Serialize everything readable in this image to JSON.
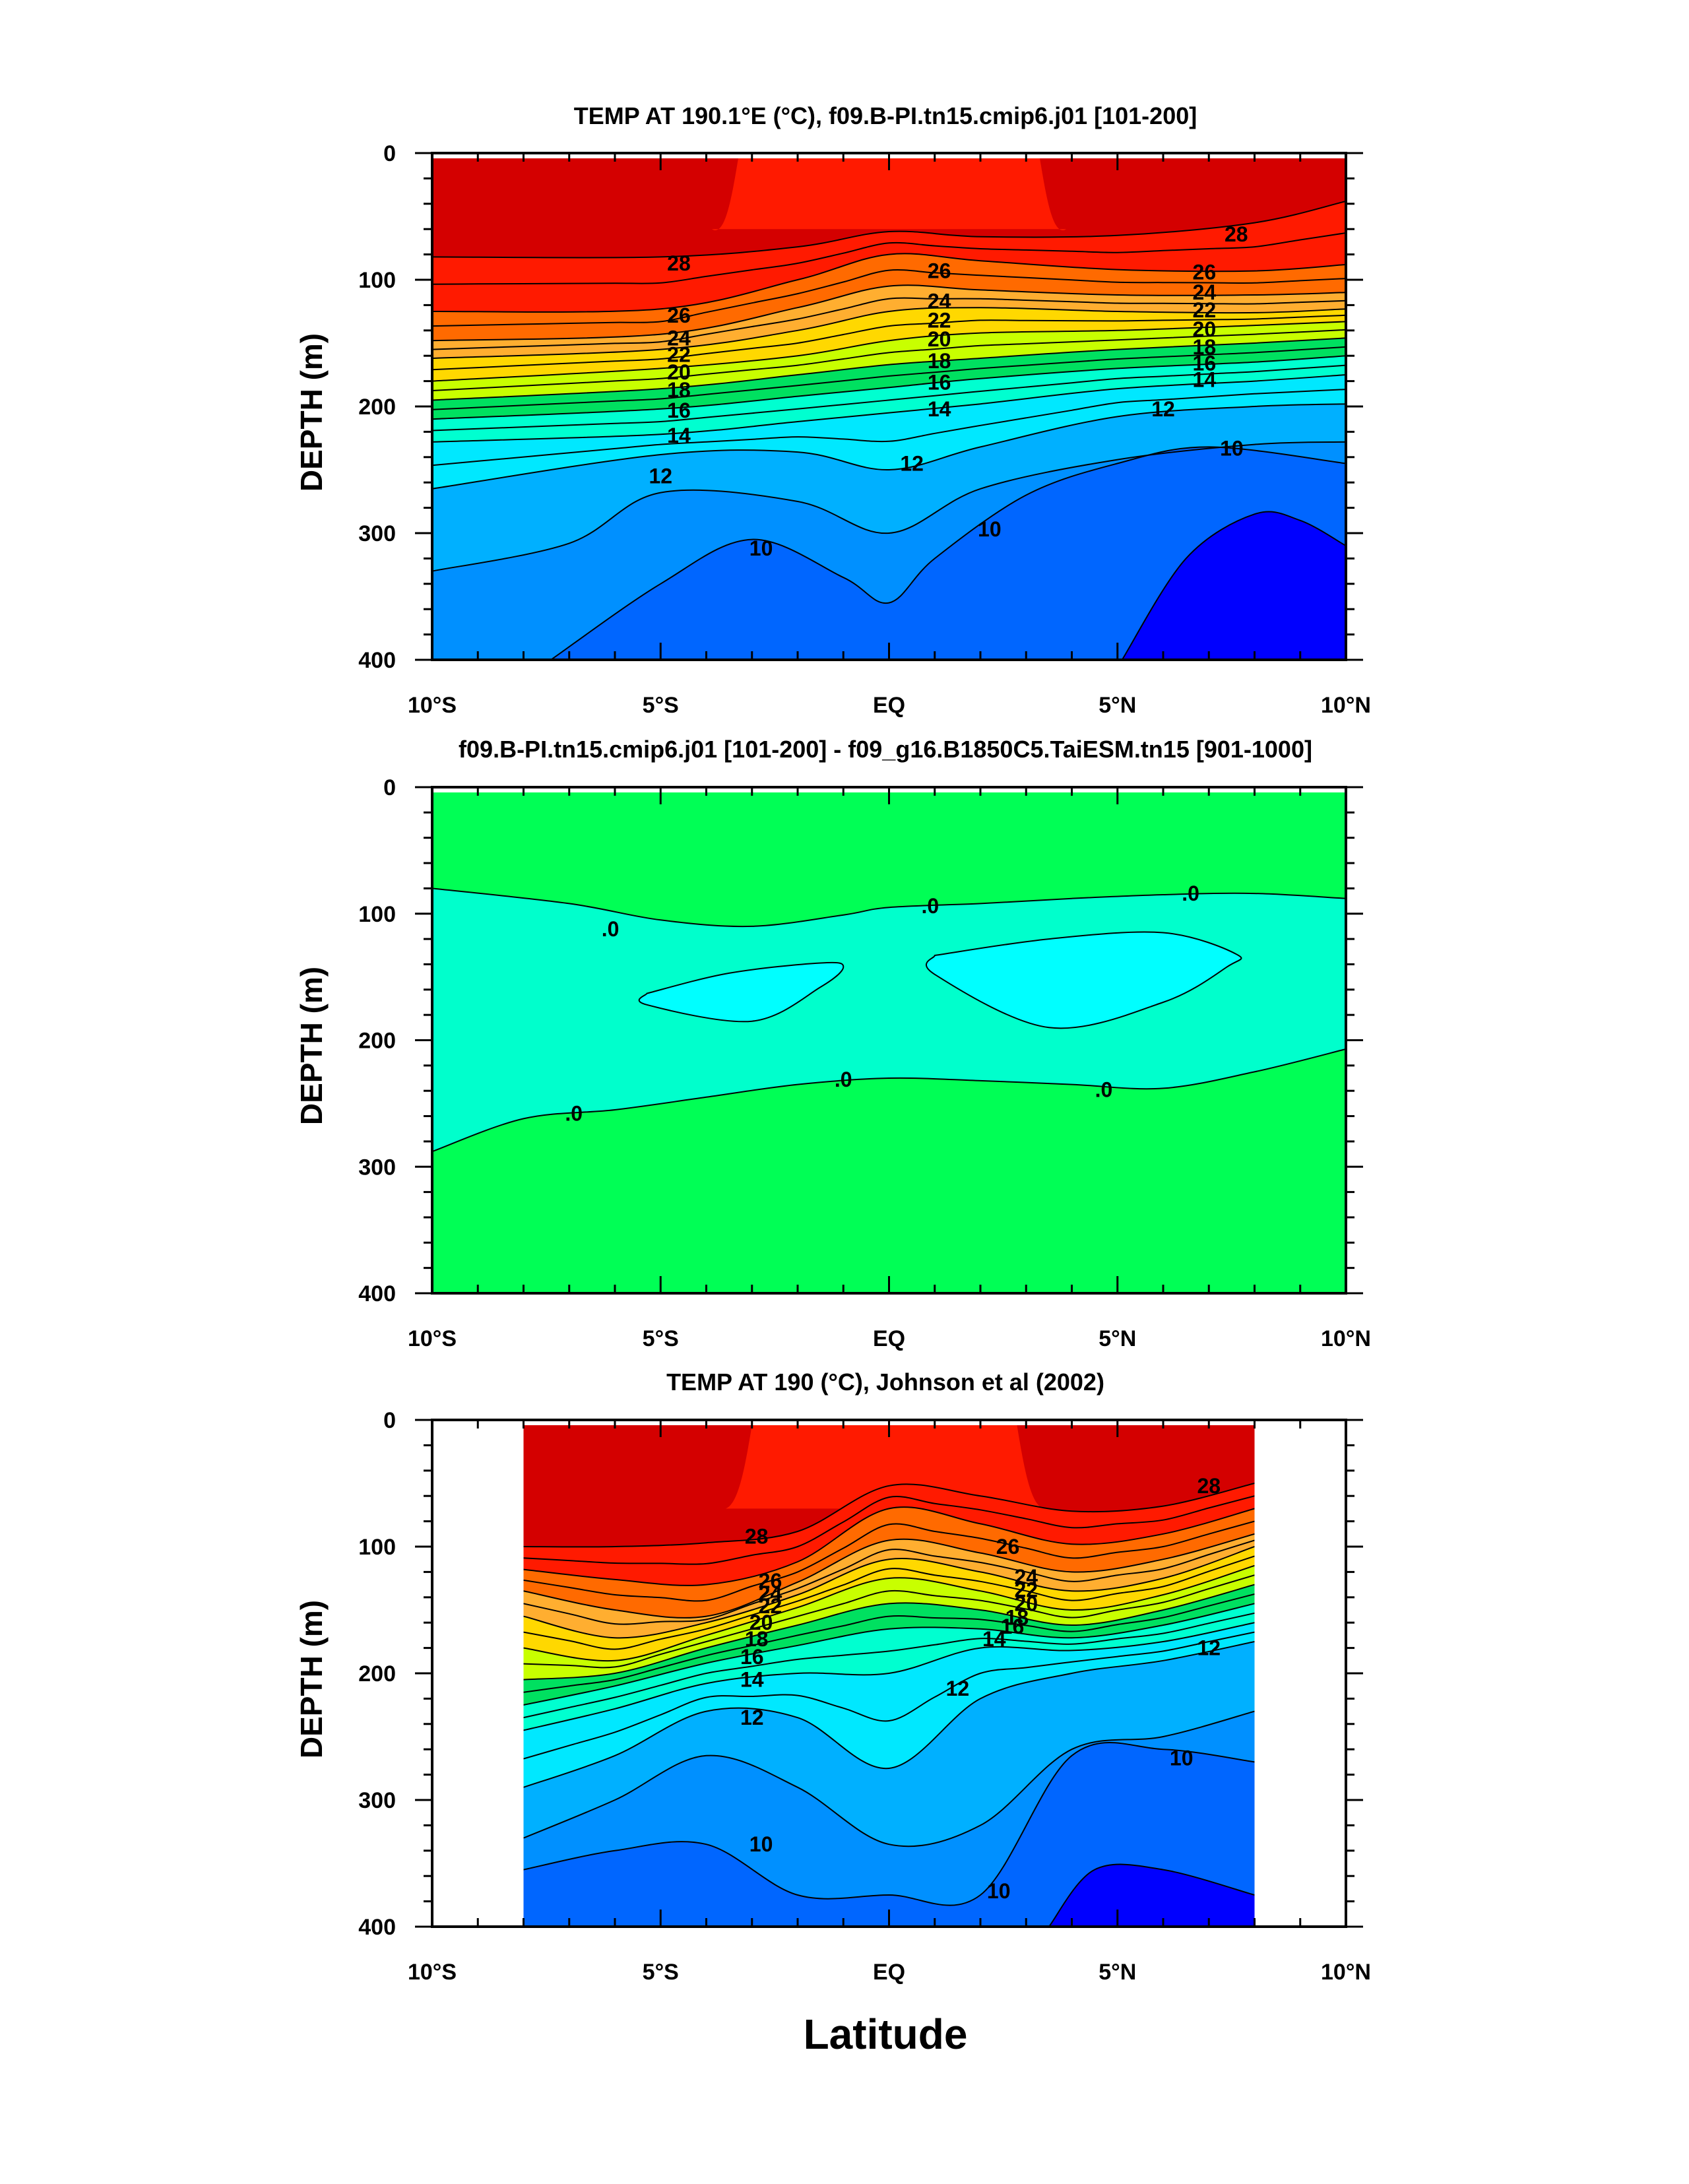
{
  "chart_data": [
    {
      "type": "heatmap",
      "subtype": "filled-contour depth-latitude section",
      "title": "TEMP AT 190.1°E (°C), f09.B-PI.tn15.cmip6.j01 [101-200]",
      "xlabel": "",
      "ylabel": "DEPTH (m)",
      "xlim": [
        -10,
        10
      ],
      "ylim": [
        400,
        0
      ],
      "x_tick_values": [
        -10,
        -5,
        0,
        5,
        10
      ],
      "x_tick_labels": [
        "10°S",
        "5°S",
        "EQ",
        "5°N",
        "10°N"
      ],
      "y_ticks": [
        0,
        100,
        200,
        300,
        400
      ],
      "data_lat_range": [
        -10,
        10
      ],
      "contour_interval": 1,
      "colors": {
        "30": "#d40000",
        "28": "#ff1a00",
        "26": "#ff6a00",
        "25": "#ff8c00",
        "24": "#ffae30",
        "22": "#ffd800",
        "21": "#ffff20",
        "20": "#c8ff00",
        "19": "#50ee00",
        "18": "#00e060",
        "16": "#00ffd0",
        "15": "#30ffff",
        "14": "#00e8ff",
        "13": "#00ccff",
        "12": "#00b0ff",
        "11": "#0090ff",
        "10": "#0066ff",
        "9": "#0000ff"
      },
      "isotherms": [
        {
          "level": 28,
          "lat": [
            -10,
            -5,
            -2,
            0,
            2,
            5,
            8,
            10
          ],
          "depth": [
            82,
            82,
            74,
            62,
            66,
            65,
            55,
            38
          ]
        },
        {
          "level": 26,
          "lat": [
            -10,
            -5,
            -2,
            0,
            2,
            5,
            8,
            10
          ],
          "depth": [
            125,
            123,
            100,
            80,
            85,
            92,
            93,
            88
          ]
        },
        {
          "level": 24,
          "lat": [
            -10,
            -5,
            -2,
            0,
            2,
            5,
            8,
            10
          ],
          "depth": [
            148,
            143,
            122,
            105,
            108,
            112,
            112,
            110
          ]
        },
        {
          "level": 22,
          "lat": [
            -10,
            -5,
            -2,
            0,
            2,
            5,
            8,
            10
          ],
          "depth": [
            162,
            155,
            140,
            125,
            122,
            125,
            126,
            123
          ]
        },
        {
          "level": 20,
          "lat": [
            -10,
            -5,
            -2,
            0,
            2,
            5,
            8,
            10
          ],
          "depth": [
            180,
            170,
            160,
            148,
            142,
            140,
            136,
            133
          ]
        },
        {
          "level": 18,
          "lat": [
            -10,
            -5,
            -2,
            0,
            2,
            5,
            8,
            10
          ],
          "depth": [
            195,
            186,
            175,
            167,
            162,
            155,
            150,
            146
          ]
        },
        {
          "level": 16,
          "lat": [
            -10,
            -5,
            -2,
            0,
            2,
            5,
            8,
            10
          ],
          "depth": [
            210,
            202,
            192,
            185,
            178,
            170,
            165,
            160
          ]
        },
        {
          "level": 14,
          "lat": [
            -10,
            -5,
            -2,
            0,
            2,
            5,
            8,
            10
          ],
          "depth": [
            228,
            222,
            212,
            205,
            198,
            186,
            180,
            175
          ]
        },
        {
          "level": 12,
          "lat": [
            -10,
            -5,
            -2,
            0,
            2,
            5,
            8,
            10
          ],
          "depth": [
            265,
            238,
            236,
            250,
            232,
            208,
            200,
            198
          ]
        },
        {
          "level": 11,
          "lat": [
            -10,
            -7,
            -5,
            -2,
            0,
            2,
            5,
            8,
            10
          ],
          "depth": [
            330,
            308,
            268,
            275,
            300,
            265,
            242,
            230,
            228
          ]
        },
        {
          "level": 10,
          "lat": [
            -7.4,
            -5,
            -3,
            -1,
            0,
            1,
            3,
            5,
            7,
            10
          ],
          "depth": [
            400,
            340,
            305,
            335,
            355,
            320,
            270,
            245,
            232,
            245
          ]
        },
        {
          "level": 9,
          "lat": [
            5.1,
            6.5,
            8,
            9,
            10
          ],
          "depth": [
            400,
            320,
            285,
            290,
            310
          ]
        }
      ],
      "contour_labels": [
        {
          "text": "28",
          "lat": -4.6,
          "depth": 87
        },
        {
          "text": "28",
          "lat": 7.6,
          "depth": 64
        },
        {
          "text": "26",
          "lat": -4.6,
          "depth": 128
        },
        {
          "text": "26",
          "lat": 1.1,
          "depth": 93
        },
        {
          "text": "26",
          "lat": 6.9,
          "depth": 94
        },
        {
          "text": "24",
          "lat": -4.6,
          "depth": 146
        },
        {
          "text": "24",
          "lat": 1.1,
          "depth": 117
        },
        {
          "text": "24",
          "lat": 6.9,
          "depth": 110
        },
        {
          "text": "22",
          "lat": -4.6,
          "depth": 159
        },
        {
          "text": "22",
          "lat": 1.1,
          "depth": 132
        },
        {
          "text": "22",
          "lat": 6.9,
          "depth": 124
        },
        {
          "text": "20",
          "lat": -4.6,
          "depth": 173
        },
        {
          "text": "20",
          "lat": 1.1,
          "depth": 147
        },
        {
          "text": "20",
          "lat": 6.9,
          "depth": 139
        },
        {
          "text": "18",
          "lat": -4.6,
          "depth": 187
        },
        {
          "text": "18",
          "lat": 1.1,
          "depth": 164
        },
        {
          "text": "18",
          "lat": 6.9,
          "depth": 153
        },
        {
          "text": "16",
          "lat": -4.6,
          "depth": 203
        },
        {
          "text": "16",
          "lat": 1.1,
          "depth": 181
        },
        {
          "text": "16",
          "lat": 6.9,
          "depth": 166
        },
        {
          "text": "14",
          "lat": -4.6,
          "depth": 223
        },
        {
          "text": "14",
          "lat": 1.1,
          "depth": 202
        },
        {
          "text": "14",
          "lat": 6.9,
          "depth": 179
        },
        {
          "text": "12",
          "lat": -5.0,
          "depth": 255
        },
        {
          "text": "12",
          "lat": 0.5,
          "depth": 245
        },
        {
          "text": "12",
          "lat": 6.0,
          "depth": 202
        },
        {
          "text": "10",
          "lat": -2.8,
          "depth": 312
        },
        {
          "text": "10",
          "lat": 2.2,
          "depth": 297
        },
        {
          "text": "10",
          "lat": 7.5,
          "depth": 233
        }
      ]
    },
    {
      "type": "heatmap",
      "subtype": "filled-contour depth-latitude section (difference)",
      "title": "f09.B-PI.tn15.cmip6.j01 [101-200] - f09_g16.B1850C5.TaiESM.tn15 [901-1000]",
      "xlabel": "",
      "ylabel": "DEPTH (m)",
      "xlim": [
        -10,
        10
      ],
      "ylim": [
        400,
        0
      ],
      "x_tick_values": [
        -10,
        -5,
        0,
        5,
        10
      ],
      "x_tick_labels": [
        "10°S",
        "5°S",
        "EQ",
        "5°N",
        "10°N"
      ],
      "y_ticks": [
        0,
        100,
        200,
        300,
        400
      ],
      "data_lat_range": [
        -10,
        10
      ],
      "colors": {
        "positive": "#00ff55",
        "negative": "#00ffcc",
        "strong_negative": "#00ffff"
      },
      "zero_upper": {
        "lat": [
          -10,
          -7,
          -5,
          -3,
          -1,
          0,
          2,
          4,
          6,
          8,
          10
        ],
        "depth": [
          80,
          92,
          105,
          110,
          101,
          95,
          92,
          88,
          85,
          84,
          88
        ]
      },
      "zero_lower": {
        "lat": [
          -10,
          -8,
          -6,
          -4,
          -2,
          0,
          2,
          4,
          6,
          8,
          10
        ],
        "depth": [
          288,
          262,
          255,
          245,
          235,
          230,
          232,
          235,
          238,
          225,
          207
        ]
      },
      "negative_cores": [
        {
          "lat": [
            -5.3,
            -3.5,
            -1.5,
            -1.0,
            -1.5,
            -3.0,
            -5.3
          ],
          "depth": [
            163,
            147,
            139,
            142,
            158,
            185,
            172
          ]
        },
        {
          "lat": [
            1.0,
            3.5,
            6.0,
            7.6,
            7.4,
            6.0,
            3.5,
            1.0
          ],
          "depth": [
            133,
            120,
            115,
            132,
            142,
            170,
            190,
            148
          ]
        }
      ],
      "contour_labels": [
        {
          "text": ".0",
          "lat": -6.1,
          "depth": 112
        },
        {
          "text": ".0",
          "lat": 0.9,
          "depth": 94
        },
        {
          "text": ".0",
          "lat": 6.6,
          "depth": 84
        },
        {
          "text": ".0",
          "lat": -6.9,
          "depth": 258
        },
        {
          "text": ".0",
          "lat": -1.0,
          "depth": 231
        },
        {
          "text": ".0",
          "lat": 4.7,
          "depth": 239
        }
      ]
    },
    {
      "type": "heatmap",
      "subtype": "filled-contour depth-latitude section (observations)",
      "title": "TEMP AT 190 (°C), Johnson et al (2002)",
      "xlabel": "Latitude",
      "ylabel": "DEPTH (m)",
      "xlim": [
        -10,
        10
      ],
      "ylim": [
        400,
        0
      ],
      "x_tick_values": [
        -10,
        -5,
        0,
        5,
        10
      ],
      "x_tick_labels": [
        "10°S",
        "5°S",
        "EQ",
        "5°N",
        "10°N"
      ],
      "y_ticks": [
        0,
        100,
        200,
        300,
        400
      ],
      "data_lat_range": [
        -8,
        8
      ],
      "contour_interval": 1,
      "colors": {
        "30": "#d40000",
        "28": "#ff1a00",
        "26": "#ff6a00",
        "25": "#ff8c00",
        "24": "#ffae30",
        "22": "#ffd800",
        "21": "#ffff20",
        "20": "#c8ff00",
        "19": "#50ee00",
        "18": "#00e060",
        "16": "#00ffd0",
        "15": "#30ffff",
        "14": "#00e8ff",
        "13": "#00ccff",
        "12": "#00b0ff",
        "11": "#0090ff",
        "10": "#0066ff",
        "9": "#0000ff"
      },
      "isotherms": [
        {
          "level": 28,
          "lat": [
            -8,
            -6,
            -4,
            -2,
            0,
            2,
            4,
            6,
            8
          ],
          "depth": [
            100,
            100,
            97,
            88,
            52,
            60,
            72,
            68,
            50
          ]
        },
        {
          "level": 26,
          "lat": [
            -8,
            -6,
            -4,
            -2,
            0,
            2,
            4,
            6,
            8
          ],
          "depth": [
            118,
            126,
            130,
            112,
            70,
            82,
            98,
            90,
            70
          ]
        },
        {
          "level": 24,
          "lat": [
            -8,
            -6,
            -4,
            -2,
            0,
            2,
            4,
            6,
            8
          ],
          "depth": [
            135,
            150,
            155,
            128,
            95,
            105,
            120,
            110,
            90
          ]
        },
        {
          "level": 22,
          "lat": [
            -8,
            -6,
            -4,
            -2,
            0,
            2,
            4,
            6,
            8
          ],
          "depth": [
            155,
            172,
            160,
            138,
            110,
            120,
            135,
            125,
            100
          ]
        },
        {
          "level": 20,
          "lat": [
            -8,
            -6,
            -4,
            -2,
            0,
            2,
            4,
            6,
            8
          ],
          "depth": [
            180,
            190,
            170,
            148,
            125,
            135,
            150,
            138,
            115
          ]
        },
        {
          "level": 18,
          "lat": [
            -8,
            -6,
            -4,
            -2,
            0,
            2,
            4,
            6,
            8
          ],
          "depth": [
            205,
            200,
            180,
            162,
            145,
            150,
            162,
            150,
            130
          ]
        },
        {
          "level": 16,
          "lat": [
            -8,
            -6,
            -4,
            -2,
            0,
            2,
            4,
            6,
            8
          ],
          "depth": [
            225,
            210,
            192,
            178,
            165,
            165,
            172,
            162,
            145
          ]
        },
        {
          "level": 14,
          "lat": [
            -8,
            -6,
            -4,
            -2,
            0,
            2,
            4,
            6,
            8
          ],
          "depth": [
            245,
            228,
            208,
            200,
            200,
            180,
            182,
            175,
            160
          ]
        },
        {
          "level": 12,
          "lat": [
            -8,
            -6,
            -4,
            -2,
            0,
            2,
            4,
            6,
            8
          ],
          "depth": [
            290,
            265,
            230,
            235,
            275,
            220,
            200,
            190,
            175
          ]
        },
        {
          "level": 11,
          "lat": [
            -8,
            -6,
            -4,
            -2,
            0,
            2,
            4,
            6,
            8
          ],
          "depth": [
            330,
            300,
            265,
            290,
            335,
            320,
            260,
            250,
            230
          ]
        },
        {
          "level": 10,
          "lat": [
            -8,
            -6,
            -4,
            -2,
            0,
            2,
            4,
            6,
            8
          ],
          "depth": [
            355,
            340,
            335,
            375,
            375,
            375,
            265,
            260,
            270
          ]
        },
        {
          "level": 9,
          "lat": [
            3.5,
            4.5,
            6,
            8
          ],
          "depth": [
            400,
            355,
            355,
            375
          ]
        }
      ],
      "contour_labels": [
        {
          "text": "28",
          "lat": -2.9,
          "depth": 92
        },
        {
          "text": "28",
          "lat": 7.0,
          "depth": 52
        },
        {
          "text": "26",
          "lat": -2.6,
          "depth": 127
        },
        {
          "text": "26",
          "lat": 2.6,
          "depth": 100
        },
        {
          "text": "24",
          "lat": -2.6,
          "depth": 137
        },
        {
          "text": "24",
          "lat": 3.0,
          "depth": 124
        },
        {
          "text": "22",
          "lat": -2.6,
          "depth": 147
        },
        {
          "text": "22",
          "lat": 3.0,
          "depth": 134
        },
        {
          "text": "20",
          "lat": -2.8,
          "depth": 160
        },
        {
          "text": "20",
          "lat": 3.0,
          "depth": 145
        },
        {
          "text": "18",
          "lat": -2.9,
          "depth": 173
        },
        {
          "text": "18",
          "lat": 2.8,
          "depth": 156
        },
        {
          "text": "16",
          "lat": -3.0,
          "depth": 187
        },
        {
          "text": "16",
          "lat": 2.7,
          "depth": 163
        },
        {
          "text": "14",
          "lat": -3.0,
          "depth": 205
        },
        {
          "text": "14",
          "lat": 2.3,
          "depth": 173
        },
        {
          "text": "12",
          "lat": -3.0,
          "depth": 235
        },
        {
          "text": "12",
          "lat": 1.5,
          "depth": 212
        },
        {
          "text": "12",
          "lat": 7.0,
          "depth": 180
        },
        {
          "text": "10",
          "lat": -2.8,
          "depth": 335
        },
        {
          "text": "10",
          "lat": 2.4,
          "depth": 372
        },
        {
          "text": "10",
          "lat": 6.4,
          "depth": 267
        }
      ]
    }
  ]
}
